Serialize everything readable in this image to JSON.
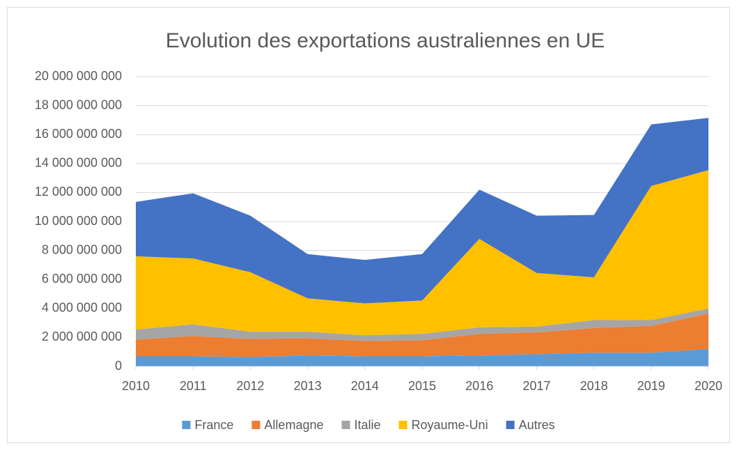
{
  "chart_data": {
    "type": "stacked_area",
    "title": "Evolution des exportations australiennes en UE",
    "categories": [
      "2010",
      "2011",
      "2012",
      "2013",
      "2014",
      "2015",
      "2016",
      "2017",
      "2018",
      "2019",
      "2020"
    ],
    "series": [
      {
        "name": "France",
        "color": "#5B9BD5",
        "values": [
          700000000,
          700000000,
          650000000,
          750000000,
          700000000,
          700000000,
          750000000,
          850000000,
          950000000,
          950000000,
          1200000000
        ]
      },
      {
        "name": "Allemagne",
        "color": "#ED7D31",
        "values": [
          1150000000,
          1400000000,
          1250000000,
          1200000000,
          1050000000,
          1100000000,
          1500000000,
          1500000000,
          1700000000,
          1850000000,
          2450000000
        ]
      },
      {
        "name": "Italie",
        "color": "#A5A5A5",
        "values": [
          700000000,
          800000000,
          500000000,
          450000000,
          400000000,
          450000000,
          450000000,
          400000000,
          550000000,
          400000000,
          350000000
        ]
      },
      {
        "name": "Royaume-Uni",
        "color": "#FFC000",
        "values": [
          5050000000,
          4550000000,
          4100000000,
          2300000000,
          2200000000,
          2300000000,
          6100000000,
          3700000000,
          2950000000,
          9250000000,
          9550000000
        ]
      },
      {
        "name": "Autres",
        "color": "#4472C4",
        "values": [
          3750000000,
          4500000000,
          3900000000,
          3050000000,
          3000000000,
          3200000000,
          3400000000,
          3950000000,
          4300000000,
          4250000000,
          3600000000
        ]
      }
    ],
    "ylim": [
      0,
      20000000000
    ],
    "yticks": [
      0,
      {
        "value": 2000000000,
        "label": "2 000 000 000"
      },
      {
        "value": 4000000000,
        "label": "4 000 000 000"
      },
      {
        "value": 6000000000,
        "label": "6 000 000 000"
      },
      {
        "value": 8000000000,
        "label": "8 000 000 000"
      },
      {
        "value": 10000000000,
        "label": "10 000 000 000"
      },
      {
        "value": 12000000000,
        "label": "12 000 000 000"
      },
      {
        "value": 14000000000,
        "label": "14 000 000 000"
      },
      {
        "value": 16000000000,
        "label": "16 000 000 000"
      },
      {
        "value": 18000000000,
        "label": "18 000 000 000"
      },
      {
        "value": 20000000000,
        "label": "20 000 000 000"
      }
    ],
    "grid": true,
    "legend": "bottom"
  }
}
